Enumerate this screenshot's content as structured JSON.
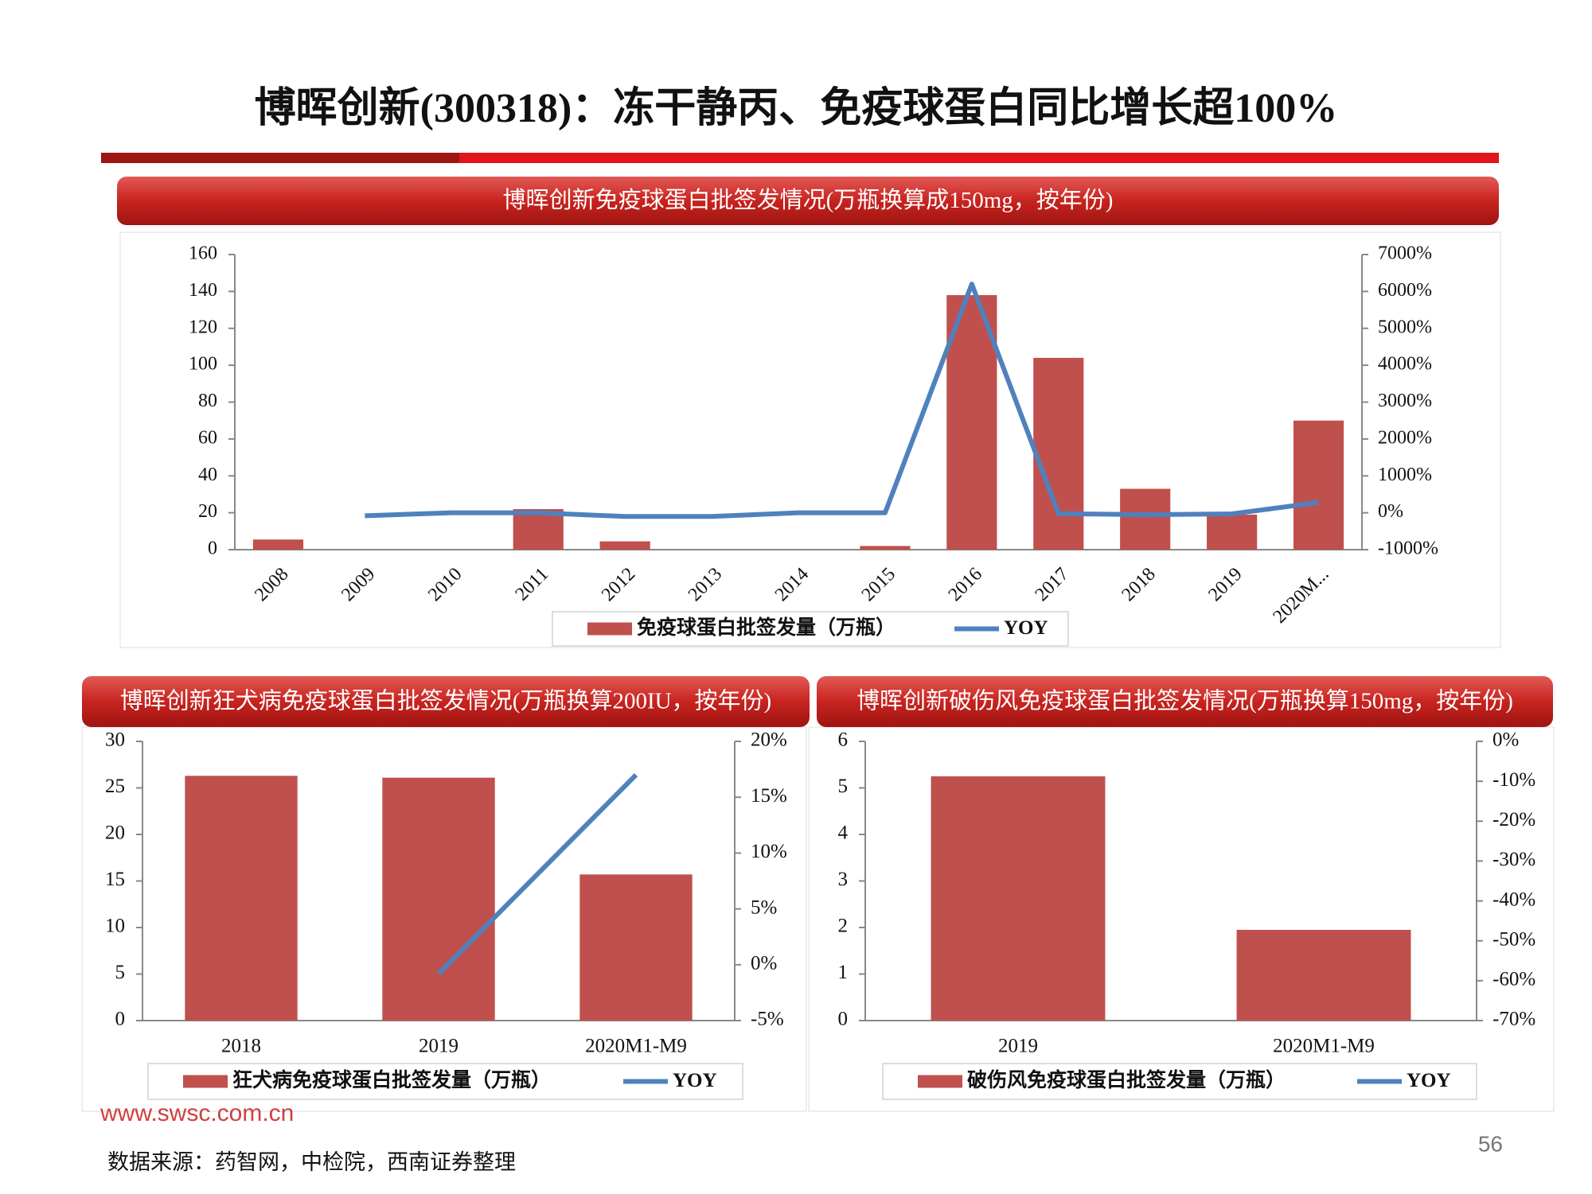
{
  "title": "博晖创新(300318)：冻干静丙、免疫球蛋白同比增长超100%",
  "watermark": "www.swsc.com.cn",
  "footnote": "数据来源：药智网，中检院，西南证券整理",
  "page_number": "56",
  "chart_data": [
    {
      "type": "bar",
      "title": "博晖创新免疫球蛋白批签发情况(万瓶换算成150mg，按年份)",
      "categories": [
        "2008",
        "2009",
        "2010",
        "2011",
        "2012",
        "2013",
        "2014",
        "2015",
        "2016",
        "2017",
        "2018",
        "2019",
        "2020M..."
      ],
      "series": [
        {
          "name": "免疫球蛋白批签发量（万瓶）",
          "type": "bar",
          "color": "#c0504d",
          "values": [
            5.5,
            0,
            0,
            22,
            4.5,
            0,
            0,
            2,
            138,
            104,
            33,
            19,
            70
          ]
        },
        {
          "name": "YOY",
          "type": "line",
          "axis": "y2",
          "color": "#4f81bd",
          "values": [
            null,
            -80,
            0,
            0,
            -100,
            -100,
            0,
            0,
            6200,
            -25,
            -50,
            -30,
            280
          ]
        }
      ],
      "ylim": [
        0,
        160
      ],
      "yticks": [
        0,
        20,
        40,
        60,
        80,
        100,
        120,
        140,
        160
      ],
      "y2lim": [
        -1000,
        7000
      ],
      "y2ticks": [
        {
          "value": -1000,
          "label": "-1000%"
        },
        {
          "value": 0,
          "label": "0%"
        },
        {
          "value": 1000,
          "label": "1000%"
        },
        {
          "value": 2000,
          "label": "2000%"
        },
        {
          "value": 3000,
          "label": "3000%"
        },
        {
          "value": 4000,
          "label": "4000%"
        },
        {
          "value": 5000,
          "label": "5000%"
        },
        {
          "value": 6000,
          "label": "6000%"
        },
        {
          "value": 7000,
          "label": "7000%"
        }
      ],
      "legend": "bottom"
    },
    {
      "type": "bar",
      "title": "博晖创新狂犬病免疫球蛋白批签发情况(万瓶换算200IU，按年份)",
      "categories": [
        "2018",
        "2019",
        "2020M1-M9"
      ],
      "series": [
        {
          "name": "狂犬病免疫球蛋白批签发量（万瓶）",
          "type": "bar",
          "color": "#c0504d",
          "values": [
            26.3,
            26.1,
            15.7
          ]
        },
        {
          "name": "YOY",
          "type": "line",
          "axis": "y2",
          "color": "#4f81bd",
          "values": [
            null,
            -0.8,
            17
          ]
        }
      ],
      "ylim": [
        0,
        30
      ],
      "yticks": [
        0,
        5,
        10,
        15,
        20,
        25,
        30
      ],
      "y2lim": [
        -5,
        20
      ],
      "y2ticks": [
        {
          "value": -5,
          "label": "-5%"
        },
        {
          "value": 0,
          "label": "0%"
        },
        {
          "value": 5,
          "label": "5%"
        },
        {
          "value": 10,
          "label": "10%"
        },
        {
          "value": 15,
          "label": "15%"
        },
        {
          "value": 20,
          "label": "20%"
        }
      ],
      "legend": "bottom"
    },
    {
      "type": "bar",
      "title": "博晖创新破伤风免疫球蛋白批签发情况(万瓶换算150mg，按年份)",
      "categories": [
        "2019",
        "2020M1-M9"
      ],
      "series": [
        {
          "name": "破伤风免疫球蛋白批签发量（万瓶）",
          "type": "bar",
          "color": "#c0504d",
          "values": [
            5.25,
            1.95
          ]
        },
        {
          "name": "YOY",
          "type": "line",
          "axis": "y2",
          "color": "#4f81bd",
          "values": [
            null,
            null
          ]
        }
      ],
      "ylim": [
        0,
        6
      ],
      "yticks": [
        0,
        1,
        2,
        3,
        4,
        5,
        6
      ],
      "y2lim": [
        -70,
        0
      ],
      "y2ticks": [
        {
          "value": -70,
          "label": "-70%"
        },
        {
          "value": -60,
          "label": "-60%"
        },
        {
          "value": -50,
          "label": "-50%"
        },
        {
          "value": -40,
          "label": "-40%"
        },
        {
          "value": -30,
          "label": "-30%"
        },
        {
          "value": -20,
          "label": "-20%"
        },
        {
          "value": -10,
          "label": "-10%"
        },
        {
          "value": 0,
          "label": "0%"
        }
      ],
      "legend": "bottom"
    }
  ]
}
